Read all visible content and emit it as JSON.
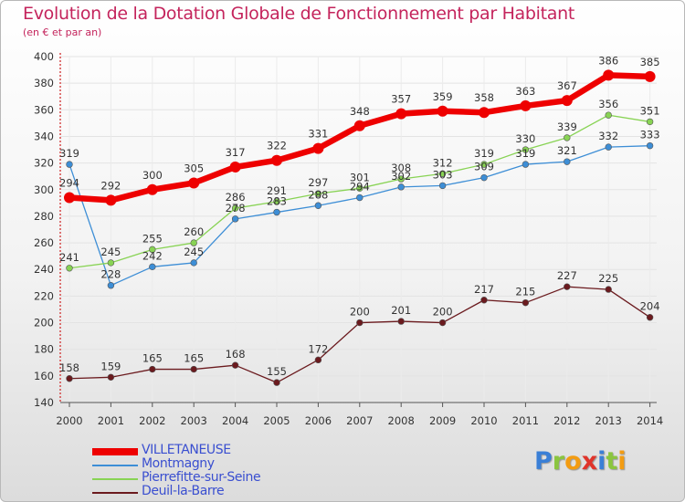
{
  "header": {
    "title": "Evolution de la Dotation Globale de Fonctionnement par Habitant",
    "subtitle": "(en € et par an)"
  },
  "brand": {
    "text": "Proxiti",
    "letter_colors": [
      "#3a7fd6",
      "#8bc53f",
      "#f39c12",
      "#e0342b",
      "#3a7fd6",
      "#8bc53f",
      "#f39c12"
    ]
  },
  "chart_data": {
    "type": "line",
    "title": "Evolution de la Dotation Globale de Fonctionnement par Habitant",
    "subtitle": "(en € et par an)",
    "xlabel": "",
    "ylabel": "",
    "x": [
      "2000",
      "2001",
      "2002",
      "2003",
      "2004",
      "2005",
      "2006",
      "2007",
      "2008",
      "2009",
      "2010",
      "2011",
      "2012",
      "2013",
      "2014"
    ],
    "yticks": [
      140,
      160,
      180,
      200,
      220,
      240,
      260,
      280,
      300,
      320,
      340,
      360,
      380,
      400
    ],
    "ylim": [
      140,
      400
    ],
    "grid": true,
    "legend_position": "bottom-left",
    "series": [
      {
        "name": "VILLETANEUSE",
        "color": "#ee0000",
        "values": [
          294,
          292,
          300,
          305,
          317,
          322,
          331,
          348,
          357,
          359,
          358,
          363,
          367,
          386,
          385
        ]
      },
      {
        "name": "Montmagny",
        "color": "#3d8ed6",
        "values": [
          319,
          228,
          242,
          245,
          278,
          283,
          288,
          294,
          302,
          303,
          309,
          319,
          321,
          332,
          333
        ]
      },
      {
        "name": "Pierrefitte-sur-Seine",
        "color": "#88d354",
        "values": [
          241,
          245,
          255,
          260,
          286,
          291,
          297,
          301,
          308,
          312,
          319,
          330,
          339,
          356,
          351
        ]
      },
      {
        "name": "Deuil-la-Barre",
        "color": "#6b1a1e",
        "values": [
          158,
          159,
          165,
          165,
          168,
          155,
          172,
          200,
          201,
          200,
          217,
          215,
          227,
          225,
          204
        ]
      }
    ]
  }
}
